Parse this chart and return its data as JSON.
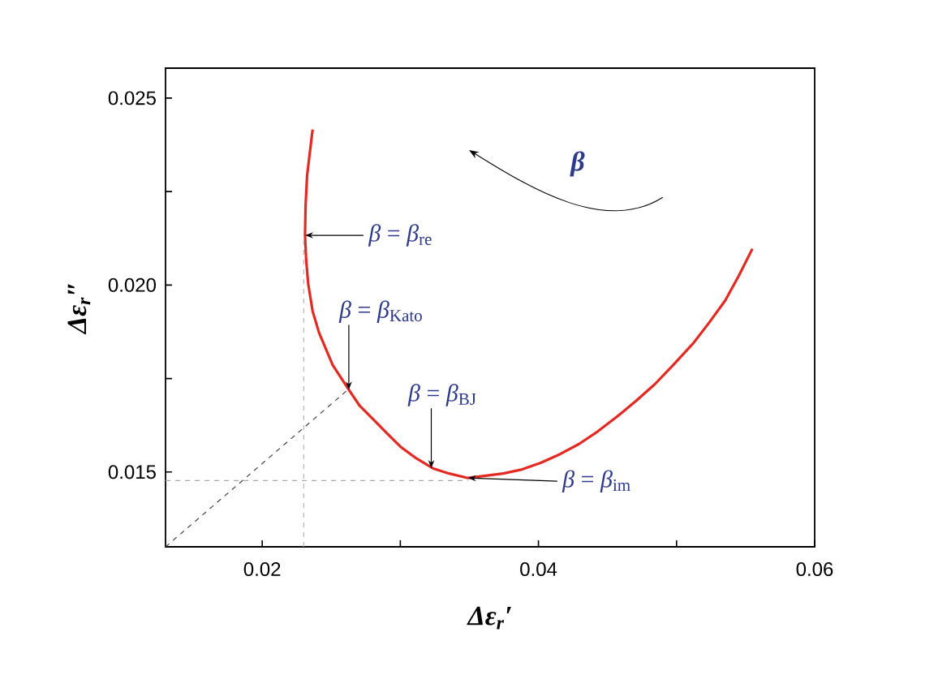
{
  "chart_data": {
    "type": "line",
    "xlabel": "Δε$_{r}$′",
    "ylabel": "Δε$_{r}$″",
    "xlim": [
      0.013,
      0.06
    ],
    "ylim": [
      0.013,
      0.0258
    ],
    "xticks": [
      0.02,
      {
        "value": 0.03,
        "label": null
      },
      0.04,
      {
        "value": 0.05,
        "label": null
      },
      0.06
    ],
    "yticks": [
      0.015,
      {
        "value": 0.0175,
        "label": null
      },
      {
        "value": 0.02,
        "label": "0.020"
      },
      {
        "value": 0.0225,
        "label": null
      },
      0.025
    ],
    "series": [
      {
        "color": "#e32a22",
        "x": [
          0.02365,
          0.02345,
          0.02325,
          0.02314,
          0.0231,
          0.02318,
          0.02333,
          0.02365,
          0.02412,
          0.0251,
          0.02627,
          0.02706,
          0.02804,
          0.02902,
          0.03,
          0.03118,
          0.03235,
          0.03353,
          0.0349,
          0.03745,
          0.03882,
          0.0402,
          0.04157,
          0.04294,
          0.04431,
          0.04569,
          0.04706,
          0.04843,
          0.0498,
          0.05118,
          0.05235,
          0.05353,
          0.05451,
          0.05549
        ],
        "values": [
          0.02416,
          0.02355,
          0.02293,
          0.02213,
          0.02133,
          0.02068,
          0.02003,
          0.0193,
          0.01872,
          0.01786,
          0.0172,
          0.01677,
          0.01641,
          0.01604,
          0.01568,
          0.01536,
          0.0151,
          0.01496,
          0.01484,
          0.01496,
          0.01507,
          0.01525,
          0.01548,
          0.01575,
          0.01609,
          0.01648,
          0.0169,
          0.01735,
          0.01788,
          0.01843,
          0.01899,
          0.01959,
          0.02025,
          0.02097
        ]
      },
      {
        "color": "#aaaaaa",
        "line_style": "dashed",
        "x": [
          0.023,
          0.023
        ],
        "values": [
          0.013,
          0.0213
        ]
      },
      {
        "color": "#aaaaaa",
        "line_style": "dashed",
        "x": [
          0.013,
          0.0349
        ],
        "values": [
          0.01477,
          0.01477
        ]
      },
      {
        "color": "#444444",
        "line_style": "dashed",
        "x": [
          0.013,
          0.0262
        ],
        "values": [
          0.013,
          0.0172
        ]
      }
    ],
    "annotations": [
      {
        "text": "*β* = *β*$_{re}$",
        "x": 0.0231,
        "y": 0.02133
      },
      {
        "text": "*β* = *β*$_{Kato}$",
        "x": 0.02627,
        "y": 0.0172
      },
      {
        "text": "*β* = *β*$_{BJ}$",
        "x": 0.03224,
        "y": 0.0151
      },
      {
        "text": "*β* = *β*$_{im}$",
        "x": 0.0349,
        "y": 0.01484
      },
      "β"
    ]
  }
}
